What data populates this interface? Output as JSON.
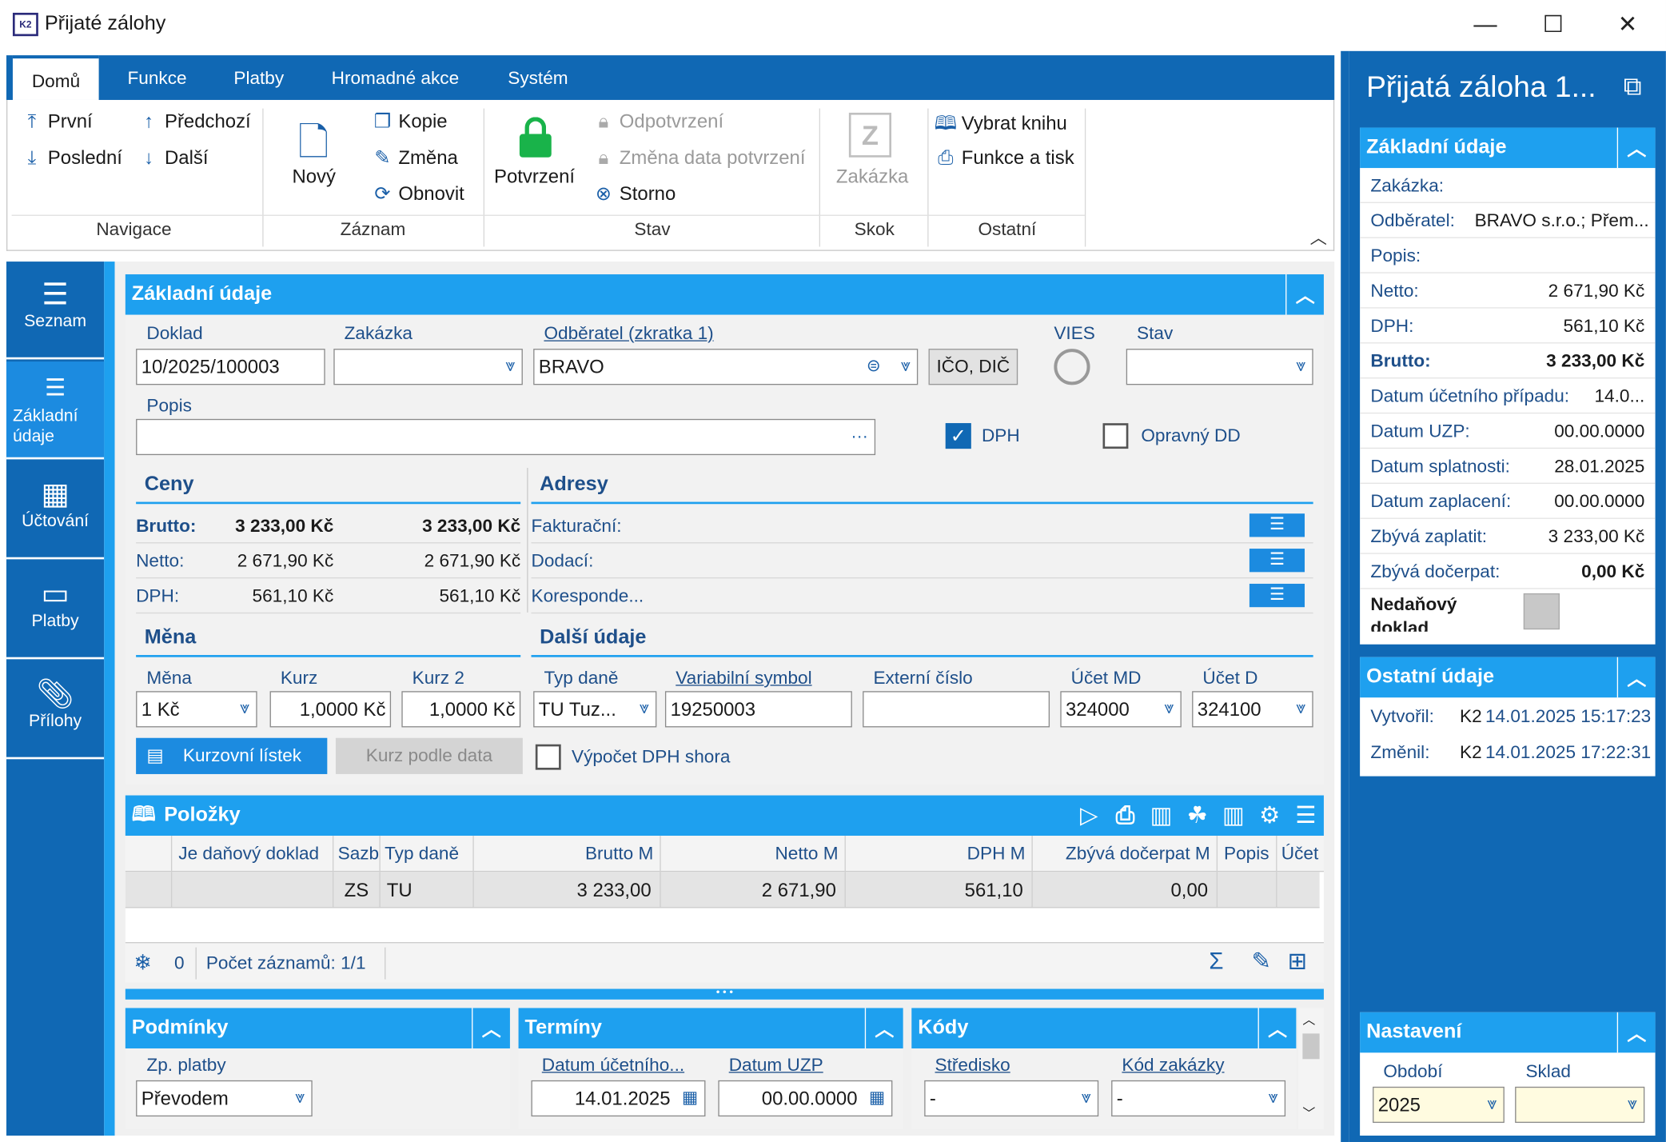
{
  "window": {
    "title": "Přijaté zálohy",
    "app_icon": "K2",
    "min": "—",
    "max": "☐",
    "close": "✕"
  },
  "tabs": [
    "Domů",
    "Funkce",
    "Platby",
    "Hromadné akce",
    "Systém"
  ],
  "ribbon": {
    "nav": {
      "first": "První",
      "last": "Poslední",
      "prev": "Předchozí",
      "next": "Další",
      "label": "Navigace"
    },
    "record": {
      "new": "Nový",
      "copy": "Kopie",
      "change": "Změna",
      "refresh": "Obnovit",
      "label": "Záznam"
    },
    "state": {
      "confirm": "Potvrzení",
      "unconfirm": "Odpotvrzení",
      "change_date": "Změna data potvrzení",
      "storno": "Storno",
      "label": "Stav"
    },
    "jump": {
      "contract": "Zakázka",
      "label": "Skok"
    },
    "other": {
      "book": "Vybrat knihu",
      "print": "Funkce a tisk",
      "label": "Ostatní"
    }
  },
  "leftnav": [
    {
      "label": "Seznam",
      "icon": "list-icon"
    },
    {
      "label": "Základní údaje",
      "icon": "details-icon"
    },
    {
      "label": "Účtování",
      "icon": "calculator-icon"
    },
    {
      "label": "Platby",
      "icon": "archive-icon"
    },
    {
      "label": "Přílohy",
      "icon": "paperclip-icon"
    }
  ],
  "basic": {
    "title": "Základní údaje",
    "doklad_label": "Doklad",
    "doklad": "10/2025/100003",
    "zakazka_label": "Zakázka",
    "zakazka": "",
    "odberatel_label": "Odběratel (zkratka 1)",
    "odberatel": "BRAVO",
    "ico_btn": "IČO, DIČ",
    "vies": "VIES",
    "stav_label": "Stav",
    "stav": "",
    "popis_label": "Popis",
    "popis": "",
    "popis_more": "···",
    "dph": "DPH",
    "opravny": "Opravný DD"
  },
  "ceny": {
    "title": "Ceny",
    "rows": [
      {
        "label": "Brutto:",
        "v1": "3 233,00 Kč",
        "v2": "3 233,00 Kč"
      },
      {
        "label": "Netto:",
        "v1": "2 671,90 Kč",
        "v2": "2 671,90 Kč"
      },
      {
        "label": "DPH:",
        "v1": "561,10 Kč",
        "v2": "561,10 Kč"
      }
    ]
  },
  "adresy": {
    "title": "Adresy",
    "rows": [
      "Fakturační:",
      "Dodací:",
      "Koresponde..."
    ]
  },
  "mena": {
    "title": "Měna",
    "mena_label": "Měna",
    "mena": "1 Kč",
    "kurz_label": "Kurz",
    "kurz": "1,0000 Kč",
    "kurz2_label": "Kurz 2",
    "kurz2": "1,0000 Kč",
    "btn_list": "Kurzovní lístek",
    "btn_date": "Kurz podle data"
  },
  "dalsi": {
    "title": "Další údaje",
    "typ_label": "Typ daně",
    "typ": "TU Tuz...",
    "vs_label": "Variabilní symbol",
    "vs": "19250003",
    "ext_label": "Externí číslo",
    "ext": "",
    "md_label": "Účet MD",
    "md": "324000",
    "d_label": "Účet D",
    "d": "324100",
    "vypocet": "Výpočet DPH shora"
  },
  "polozky": {
    "title": "Položky",
    "cols": [
      "Je daňový doklad",
      "Sazb",
      "Typ daně",
      "Brutto M",
      "Netto M",
      "DPH M",
      "Zbývá dočerpat M",
      "Popis",
      "Účet"
    ],
    "row": [
      "",
      "ZS",
      "TU",
      "3 233,00",
      "2 671,90",
      "561,10",
      "0,00",
      "",
      ""
    ],
    "count": "0",
    "records": "Počet záznamů: 1/1"
  },
  "podminky": {
    "title": "Podmínky",
    "label": "Zp. platby",
    "value": "Převodem"
  },
  "terminy": {
    "title": "Termíny",
    "l1": "Datum účetního...",
    "v1": "14.01.2025",
    "l2": "Datum UZP",
    "v2": "00.00.0000"
  },
  "kody": {
    "title": "Kódy",
    "l1": "Středisko",
    "v1": "-",
    "l2": "Kód zakázky",
    "v2": "-"
  },
  "right": {
    "title": "Přijatá záloha 1...",
    "basic_title": "Základní údaje",
    "rows": [
      {
        "label": "Zakázka:",
        "value": ""
      },
      {
        "label": "Odběratel:",
        "value": "BRAVO s.r.o.; Přem..."
      },
      {
        "label": "Popis:",
        "value": ""
      },
      {
        "label": "Netto:",
        "value": "2 671,90 Kč"
      },
      {
        "label": "DPH:",
        "value": "561,10 Kč"
      },
      {
        "label": "Brutto:",
        "value": "3 233,00 Kč"
      },
      {
        "label": "Datum účetního případu:",
        "value": "14.0..."
      },
      {
        "label": "Datum UZP:",
        "value": "00.00.0000"
      },
      {
        "label": "Datum splatnosti:",
        "value": "28.01.2025"
      },
      {
        "label": "Datum zaplacení:",
        "value": "00.00.0000"
      },
      {
        "label": "Zbývá zaplatit:",
        "value": "3 233,00 Kč"
      },
      {
        "label": "Zbývá dočerpat:",
        "value": "0,00 Kč"
      }
    ],
    "nedanovy": "Nedaňový doklad",
    "other_title": "Ostatní údaje",
    "created_label": "Vytvořil:",
    "created_user": "K2",
    "created": "14.01.2025 15:17:23",
    "changed_label": "Změnil:",
    "changed_user": "K2",
    "changed": "14.01.2025 17:22:31",
    "settings_title": "Nastavení",
    "period_label": "Období",
    "period": "2025",
    "store_label": "Sklad",
    "store": ""
  }
}
